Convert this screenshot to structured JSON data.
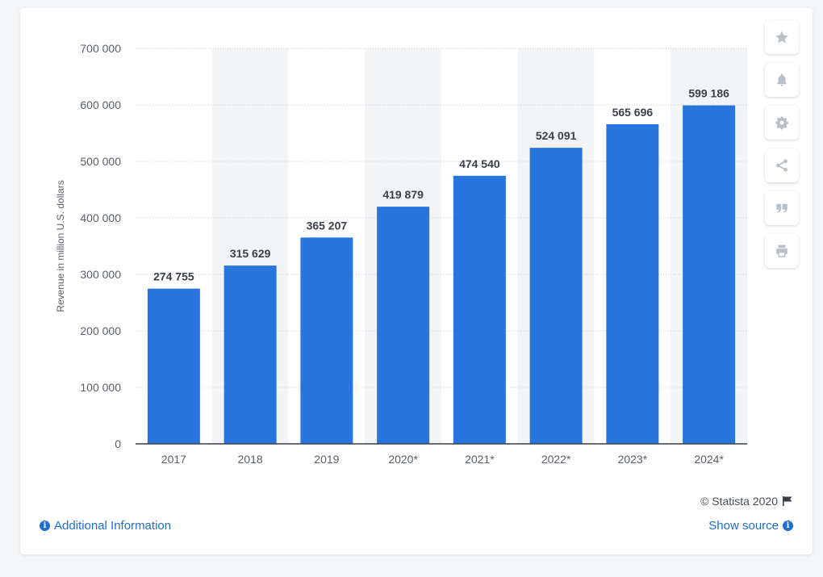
{
  "chart_data": {
    "type": "bar",
    "categories": [
      "2017",
      "2018",
      "2019",
      "2020*",
      "2021*",
      "2022*",
      "2023*",
      "2024*"
    ],
    "values": [
      274755,
      315629,
      365207,
      419879,
      474540,
      524091,
      565696,
      599186
    ],
    "value_labels": [
      "274 755",
      "315 629",
      "365 207",
      "419 879",
      "474 540",
      "524 091",
      "565 696",
      "599 186"
    ],
    "ylabel": "Revenue in million U.S. dollars",
    "ylim": [
      0,
      700000
    ],
    "yticks": [
      0,
      100000,
      200000,
      300000,
      400000,
      500000,
      600000,
      700000
    ],
    "ytick_labels": [
      "0",
      "100 000",
      "200 000",
      "300 000",
      "400 000",
      "500 000",
      "600 000",
      "700 000"
    ],
    "bar_color": "#2876dd",
    "grid": true,
    "legend": "none"
  },
  "toolbar": {
    "icons": [
      "star-icon",
      "bell-icon",
      "gear-icon",
      "share-icon",
      "quote-icon",
      "print-icon"
    ]
  },
  "footer": {
    "credit": "© Statista 2020",
    "additional_info": "Additional Information",
    "show_source": "Show source"
  },
  "colors": {
    "accent": "#2876dd",
    "link": "#1f6fcf"
  }
}
